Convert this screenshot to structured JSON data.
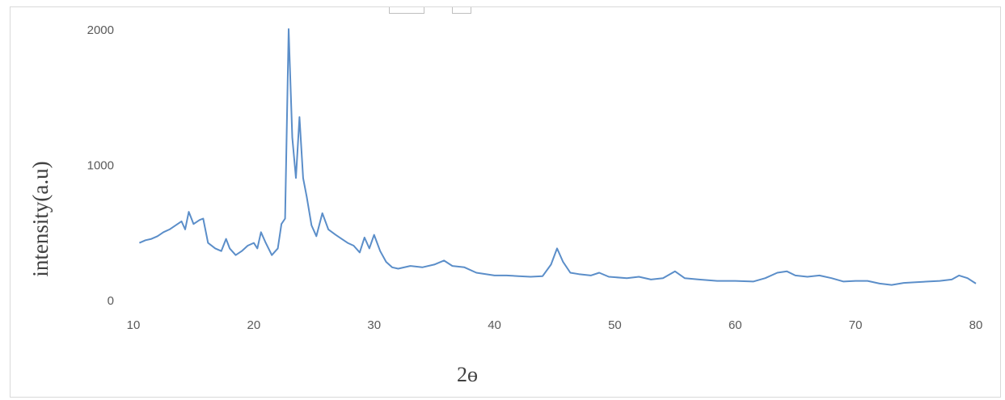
{
  "colors": {
    "series": "#5b8ec9",
    "tick_text": "#595959",
    "frame": "#d9d9d9"
  },
  "chart_data": {
    "type": "line",
    "title": "",
    "xlabel": "2ɵ",
    "ylabel": "intensity(a.u)",
    "xlim": [
      10,
      80
    ],
    "ylim": [
      0,
      2000
    ],
    "x_ticks": [
      "10",
      "20",
      "30",
      "40",
      "50",
      "60",
      "70",
      "80"
    ],
    "y_ticks": [
      "0",
      "1000",
      "2000"
    ],
    "grid": false,
    "legend": "none",
    "series": [
      {
        "points": [
          [
            10.5,
            420
          ],
          [
            11.0,
            440
          ],
          [
            11.5,
            450
          ],
          [
            12.0,
            470
          ],
          [
            12.5,
            500
          ],
          [
            13.0,
            520
          ],
          [
            13.5,
            550
          ],
          [
            14.0,
            580
          ],
          [
            14.3,
            520
          ],
          [
            14.6,
            650
          ],
          [
            15.0,
            560
          ],
          [
            15.5,
            590
          ],
          [
            15.8,
            600
          ],
          [
            16.2,
            420
          ],
          [
            16.8,
            380
          ],
          [
            17.3,
            360
          ],
          [
            17.7,
            450
          ],
          [
            18.0,
            380
          ],
          [
            18.5,
            330
          ],
          [
            19.0,
            360
          ],
          [
            19.5,
            400
          ],
          [
            20.0,
            420
          ],
          [
            20.3,
            380
          ],
          [
            20.6,
            500
          ],
          [
            21.0,
            420
          ],
          [
            21.5,
            330
          ],
          [
            22.0,
            380
          ],
          [
            22.3,
            560
          ],
          [
            22.6,
            600
          ],
          [
            22.9,
            2000
          ],
          [
            23.2,
            1200
          ],
          [
            23.5,
            900
          ],
          [
            23.8,
            1350
          ],
          [
            24.1,
            900
          ],
          [
            24.4,
            760
          ],
          [
            24.8,
            550
          ],
          [
            25.2,
            470
          ],
          [
            25.7,
            640
          ],
          [
            26.2,
            520
          ],
          [
            26.8,
            480
          ],
          [
            27.3,
            450
          ],
          [
            27.8,
            420
          ],
          [
            28.3,
            400
          ],
          [
            28.8,
            350
          ],
          [
            29.2,
            460
          ],
          [
            29.6,
            380
          ],
          [
            30.0,
            480
          ],
          [
            30.5,
            360
          ],
          [
            31.0,
            280
          ],
          [
            31.5,
            240
          ],
          [
            32.0,
            230
          ],
          [
            33.0,
            250
          ],
          [
            34.0,
            240
          ],
          [
            35.0,
            260
          ],
          [
            35.8,
            290
          ],
          [
            36.5,
            250
          ],
          [
            37.5,
            240
          ],
          [
            38.5,
            200
          ],
          [
            40.0,
            180
          ],
          [
            41.0,
            180
          ],
          [
            42.0,
            175
          ],
          [
            43.0,
            170
          ],
          [
            44.0,
            175
          ],
          [
            44.7,
            260
          ],
          [
            45.2,
            380
          ],
          [
            45.7,
            280
          ],
          [
            46.3,
            200
          ],
          [
            47.0,
            190
          ],
          [
            48.0,
            180
          ],
          [
            48.7,
            200
          ],
          [
            49.5,
            170
          ],
          [
            51.0,
            160
          ],
          [
            52.0,
            170
          ],
          [
            53.0,
            150
          ],
          [
            54.0,
            160
          ],
          [
            55.0,
            210
          ],
          [
            55.8,
            160
          ],
          [
            57.0,
            150
          ],
          [
            58.5,
            140
          ],
          [
            60.0,
            140
          ],
          [
            61.5,
            135
          ],
          [
            62.5,
            160
          ],
          [
            63.5,
            200
          ],
          [
            64.3,
            210
          ],
          [
            65.0,
            180
          ],
          [
            66.0,
            170
          ],
          [
            67.0,
            180
          ],
          [
            68.0,
            160
          ],
          [
            69.0,
            135
          ],
          [
            70.0,
            140
          ],
          [
            71.0,
            140
          ],
          [
            72.0,
            120
          ],
          [
            73.0,
            110
          ],
          [
            74.0,
            125
          ],
          [
            75.0,
            130
          ],
          [
            76.0,
            135
          ],
          [
            77.0,
            140
          ],
          [
            78.0,
            150
          ],
          [
            78.6,
            180
          ],
          [
            79.3,
            160
          ],
          [
            80.0,
            120
          ]
        ]
      }
    ]
  }
}
